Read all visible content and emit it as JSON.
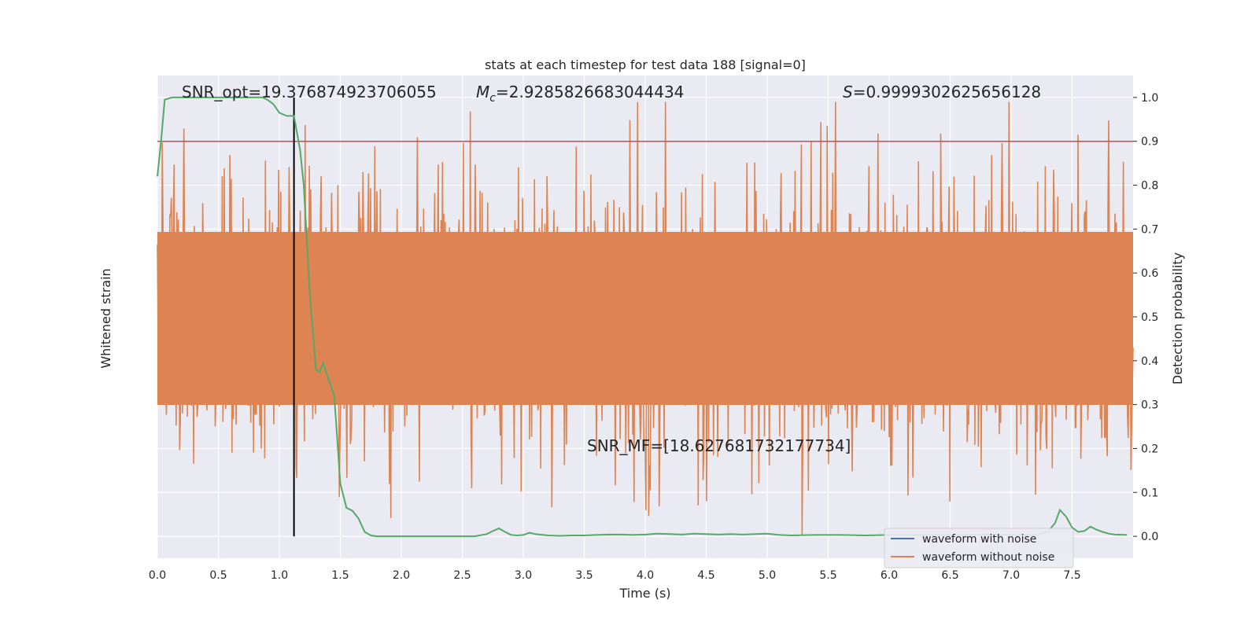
{
  "chart_data": {
    "type": "line",
    "title": "stats at each timestep for test data 188 [signal=0]",
    "xlabel": "Time (s)",
    "ylabel_left": "Whitened strain",
    "ylabel_right": "Detection probability",
    "xlim": [
      0.0,
      8.0
    ],
    "ylim_right": [
      -0.05,
      1.05
    ],
    "x_ticks": [
      "0.0",
      "0.5",
      "1.0",
      "1.5",
      "2.0",
      "2.5",
      "3.0",
      "3.5",
      "4.0",
      "4.5",
      "5.0",
      "5.5",
      "6.0",
      "6.5",
      "7.0",
      "7.5"
    ],
    "x_tick_values": [
      0.0,
      0.5,
      1.0,
      1.5,
      2.0,
      2.5,
      3.0,
      3.5,
      4.0,
      4.5,
      5.0,
      5.5,
      6.0,
      6.5,
      7.0,
      7.5
    ],
    "y_ticks_right": [
      "0.0",
      "0.1",
      "0.2",
      "0.3",
      "0.4",
      "0.5",
      "0.6",
      "0.7",
      "0.8",
      "0.9",
      "1.0"
    ],
    "y_tick_values_right": [
      0.0,
      0.1,
      0.2,
      0.3,
      0.4,
      0.5,
      0.6,
      0.7,
      0.8,
      0.9,
      1.0
    ],
    "annotations": {
      "snr_opt": "SNR_opt=19.376874923706055",
      "mc_symbol": "M",
      "mc_sub": "c",
      "mc_value": "=2.9285826683044434",
      "s_symbol": "S",
      "s_value": "=0.9999302625656128",
      "snr_mf": "SNR_MF=[18.627681732177734]"
    },
    "threshold": 0.9,
    "marker_time": 1.12,
    "legend": {
      "placement": "lower-right",
      "entries": [
        "waveform with noise",
        "waveform without noise"
      ]
    },
    "series": [
      {
        "name": "waveform with noise",
        "color": "#4c72b0",
        "values_note": "",
        "values": []
      },
      {
        "name": "waveform without noise",
        "color": "#dd8452",
        "values": []
      },
      {
        "name": "",
        "color": "#55a868",
        "axis": "right",
        "x": [
          0.0,
          0.03,
          0.06,
          0.12,
          0.2,
          0.3,
          0.4,
          0.5,
          0.6,
          0.7,
          0.8,
          0.86,
          0.9,
          0.95,
          1.0,
          1.06,
          1.12,
          1.17,
          1.2,
          1.25,
          1.3,
          1.33,
          1.36,
          1.4,
          1.45,
          1.5,
          1.55,
          1.6,
          1.65,
          1.7,
          1.75,
          1.8,
          1.85,
          1.9,
          2.0,
          2.2,
          2.4,
          2.6,
          2.7,
          2.75,
          2.8,
          2.85,
          2.9,
          2.95,
          3.0,
          3.05,
          3.1,
          3.2,
          3.3,
          3.4,
          3.5,
          3.6,
          3.7,
          3.8,
          3.9,
          4.0,
          4.1,
          4.2,
          4.3,
          4.4,
          4.5,
          4.6,
          4.7,
          4.8,
          4.9,
          5.0,
          5.1,
          5.2,
          5.4,
          5.6,
          5.8,
          6.0,
          6.2,
          6.4,
          6.6,
          6.8,
          7.0,
          7.2,
          7.3,
          7.36,
          7.4,
          7.45,
          7.5,
          7.55,
          7.6,
          7.65,
          7.7,
          7.75,
          7.8,
          7.85,
          7.95
        ],
        "values": [
          0.82,
          0.9,
          0.995,
          1.0,
          1.0,
          1.0,
          1.0,
          1.0,
          1.0,
          1.0,
          1.0,
          1.0,
          0.995,
          0.985,
          0.965,
          0.958,
          0.958,
          0.88,
          0.8,
          0.55,
          0.38,
          0.375,
          0.395,
          0.36,
          0.32,
          0.12,
          0.065,
          0.058,
          0.04,
          0.01,
          0.002,
          0.0,
          0.0,
          0.0,
          0.0,
          0.0,
          0.0,
          0.0,
          0.005,
          0.012,
          0.018,
          0.01,
          0.003,
          0.002,
          0.003,
          0.008,
          0.005,
          0.002,
          0.001,
          0.002,
          0.002,
          0.003,
          0.004,
          0.004,
          0.003,
          0.004,
          0.006,
          0.005,
          0.004,
          0.006,
          0.005,
          0.004,
          0.005,
          0.004,
          0.005,
          0.006,
          0.003,
          0.002,
          0.003,
          0.003,
          0.002,
          0.003,
          0.003,
          0.003,
          0.003,
          0.004,
          0.003,
          0.003,
          0.01,
          0.03,
          0.06,
          0.045,
          0.02,
          0.01,
          0.012,
          0.022,
          0.015,
          0.01,
          0.006,
          0.004,
          0.003
        ]
      },
      {
        "name": "",
        "color": "#c44e52",
        "axis": "right",
        "type": "hline",
        "value": 0.9
      }
    ],
    "grid": true
  }
}
